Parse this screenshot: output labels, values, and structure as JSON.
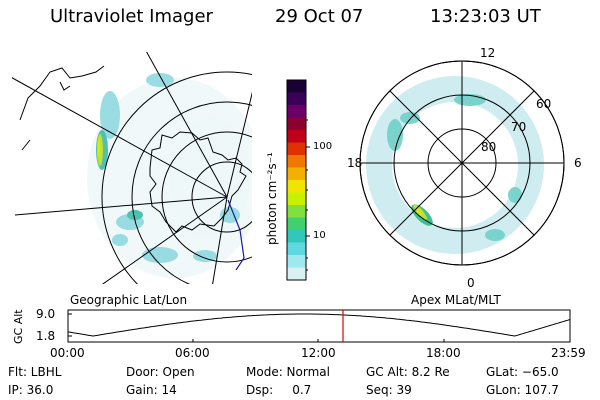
{
  "header": {
    "title": "Ultraviolet Imager",
    "date": "29 Oct 07",
    "time": "13:23:03 UT"
  },
  "left_panel": {
    "caption": "Geographic Lat/Lon"
  },
  "right_panel": {
    "caption": "Apex MLat/MLT",
    "mlt_labels": {
      "top": "12",
      "left": "18",
      "right": "6",
      "bottom": "0"
    },
    "lat_labels": [
      "60",
      "70",
      "80"
    ]
  },
  "colorbar": {
    "unit_label": "photon cm⁻²s⁻¹",
    "ticks": [
      "100",
      "10"
    ],
    "colors": [
      "#1a0033",
      "#3b005a",
      "#6a0066",
      "#8b0030",
      "#c0001a",
      "#e03000",
      "#f07800",
      "#f4b000",
      "#f0e400",
      "#c8f000",
      "#80e040",
      "#40d070",
      "#30c8b8",
      "#60d8e0",
      "#a0e8f0",
      "#d8f2f4"
    ]
  },
  "timeline": {
    "y_label": "GC Alt",
    "y_ticks": [
      "9.0",
      "1.8"
    ],
    "x_ticks": [
      "00:00",
      "06:00",
      "12:00",
      "18:00",
      "23:59"
    ],
    "marker_color": "#e00000"
  },
  "info": {
    "filter": "Flt: LBHL",
    "ip": "IP: 36.0",
    "door": "Door: Open",
    "gain": "Gain: 14",
    "mode": "Mode: Normal",
    "dsp": "Dsp:     0.7",
    "gc_alt": "GC Alt: 8.2 Re",
    "seq": "Seq: 39",
    "glat": "GLat: −65.0",
    "glon": "GLon: 107.7"
  }
}
